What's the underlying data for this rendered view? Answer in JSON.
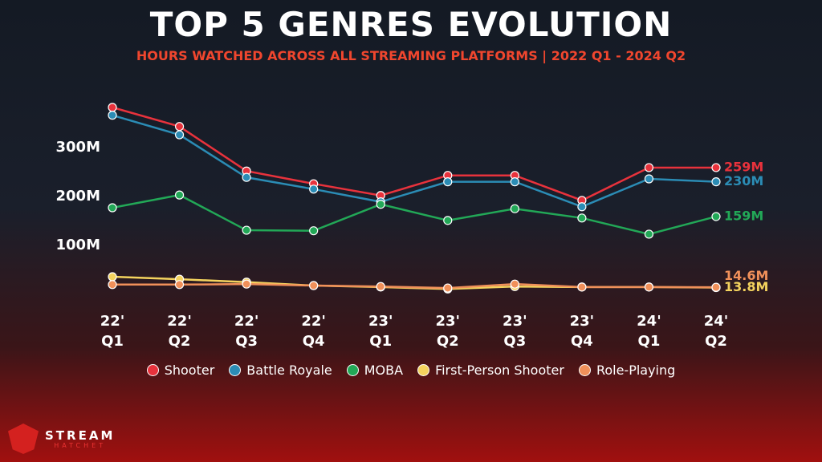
{
  "chart_data": {
    "type": "line",
    "title": "TOP 5 GENRES EVOLUTION",
    "subtitle": "HOURS WATCHED ACROSS ALL STREAMING PLATFORMS | 2022 Q1 - 2024 Q2",
    "categories": [
      "22' Q1",
      "22' Q2",
      "22' Q3",
      "22' Q4",
      "23' Q1",
      "23' Q2",
      "23' Q3",
      "23' Q4",
      "24' Q1",
      "24' Q2"
    ],
    "ylim": [
      0,
      390
    ],
    "yticks": [
      {
        "value": 100,
        "label": "100M"
      },
      {
        "value": 200,
        "label": "200M"
      },
      {
        "value": 300,
        "label": "300M"
      }
    ],
    "grid": false,
    "legend": "bottom",
    "series": [
      {
        "name": "Shooter",
        "color": "#e8323c",
        "values": [
          382,
          343,
          252,
          226,
          202,
          243,
          243,
          192,
          259,
          259
        ],
        "value_labels": [
          null,
          null,
          null,
          null,
          null,
          null,
          null,
          null,
          null,
          "259M"
        ]
      },
      {
        "name": "Battle Royale",
        "color": "#2b8cb5",
        "values": [
          366,
          326,
          239,
          215,
          189,
          230,
          230,
          179,
          236,
          230
        ],
        "value_labels": [
          null,
          null,
          null,
          null,
          null,
          null,
          null,
          null,
          null,
          "230M"
        ]
      },
      {
        "name": "MOBA",
        "color": "#22a857",
        "values": [
          177,
          203,
          131,
          130,
          184,
          151,
          175,
          156,
          123,
          159
        ],
        "value_labels": [
          null,
          null,
          null,
          null,
          null,
          null,
          null,
          null,
          null,
          "159M"
        ]
      },
      {
        "name": "First-Person Shooter",
        "color": "#f4d35e",
        "values": [
          36,
          31,
          25,
          18,
          15,
          11,
          16,
          15,
          15,
          13.8
        ],
        "value_labels": [
          null,
          null,
          null,
          null,
          null,
          null,
          null,
          null,
          null,
          "13.8M"
        ]
      },
      {
        "name": "Role-Playing",
        "color": "#f0905a",
        "values": [
          20,
          20,
          21,
          18,
          16,
          13,
          21,
          15,
          15,
          14.6
        ],
        "value_labels": [
          null,
          null,
          null,
          null,
          null,
          null,
          null,
          null,
          null,
          "14.6M"
        ]
      }
    ]
  },
  "brand": {
    "name": "STREAM",
    "tagline": "HATCHET"
  }
}
